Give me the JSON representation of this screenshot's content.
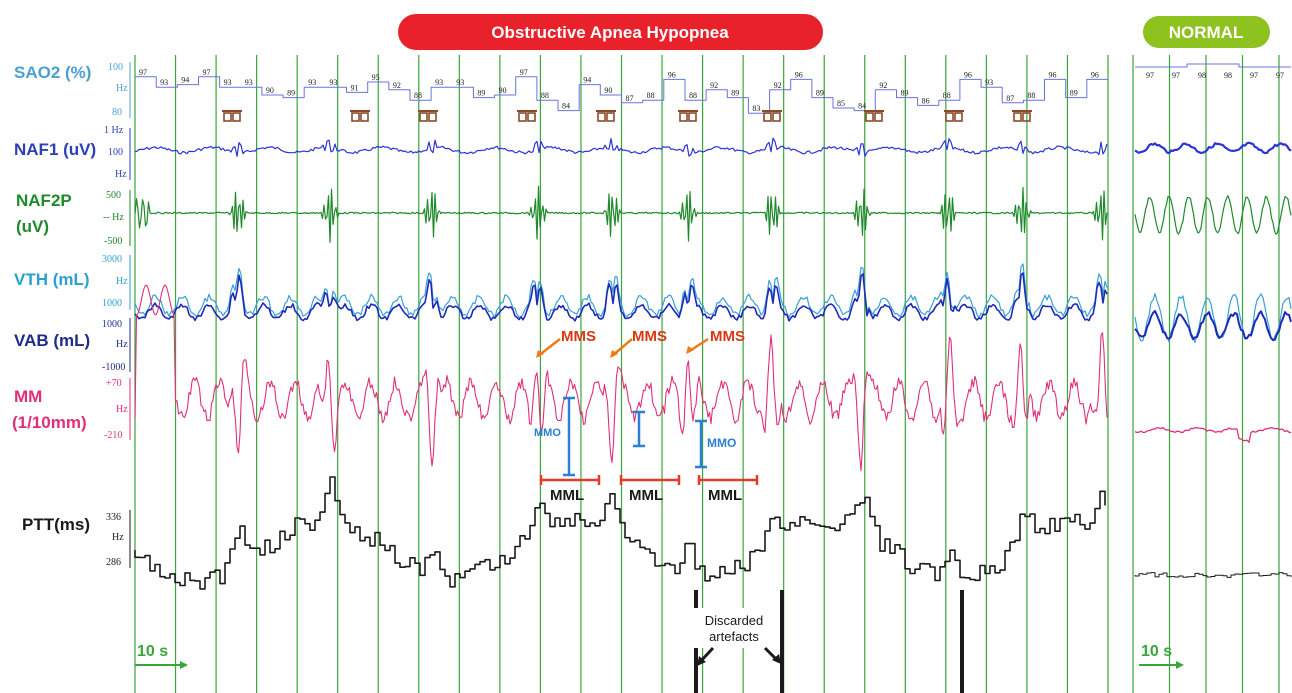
{
  "header": {
    "apnea_title": "Obstructive Apnea Hypopnea",
    "normal_title": "NORMAL"
  },
  "colors": {
    "title_red": "#e8212a",
    "normal_green": "#8dc21f",
    "grid_green": "#3aa53a",
    "sao2": "#6a73e0",
    "naf1": "#2b34d8",
    "naf2p": "#1f8a2c",
    "vth": "#38a0d8",
    "vab": "#1f2bb8",
    "mm": "#e0307a",
    "ptt": "#1a1a1a",
    "mms": "#d93a14",
    "mmo": "#2a7fd6",
    "mml": "#e33a2a"
  },
  "channels": [
    {
      "name": "SAO2 (%)",
      "color": "#4aa0d6",
      "scale_top": "100",
      "scale_mid": "Hz",
      "scale_bot": "80"
    },
    {
      "name": "NAF1 (uV)",
      "color": "#2b3fb8",
      "scale_top": "1 Hz",
      "scale_mid": "100",
      "scale_bot": "Hz"
    },
    {
      "name": "NAF2P",
      "name2": "(uV)",
      "color": "#1f8a2c",
      "scale_top": "500",
      "scale_mid": "-- Hz",
      "scale_bot": "-500"
    },
    {
      "name": "VTH (mL)",
      "color": "#2aa0d0",
      "scale_top": "3000",
      "scale_mid": "Hz",
      "scale_bot": "1000"
    },
    {
      "name": "VAB (mL)",
      "color": "#1f2b8a",
      "scale_top": "1000",
      "scale_mid": "Hz",
      "scale_bot": "-1000"
    },
    {
      "name": "MM",
      "name2": "(1/10mm)",
      "color": "#e0307a",
      "scale_top": "+70",
      "scale_mid": "Hz",
      "scale_bot": "-210"
    },
    {
      "name": "PTT(ms)",
      "color": "#1a1a1a",
      "scale_top": "336",
      "scale_mid": "Hz",
      "scale_bot": "286"
    }
  ],
  "annotations": {
    "mms_label": "MMS",
    "mmo_label": "MMO",
    "mml_label": "MML",
    "discarded_line1": "Discarded",
    "discarded_line2": "artefacts",
    "time_scale": "10 s",
    "marker_glyph": "⊓⊓"
  },
  "chart_data": {
    "type": "line",
    "panels": [
      "Obstructive Apnea Hypopnea",
      "NORMAL"
    ],
    "series": [
      {
        "name": "SAO2 (%)",
        "unit": "%",
        "range": [
          80,
          100
        ]
      },
      {
        "name": "NAF1 (uV)",
        "unit": "uV"
      },
      {
        "name": "NAF2P (uV)",
        "unit": "uV",
        "range": [
          -500,
          500
        ]
      },
      {
        "name": "VTH (mL)",
        "unit": "mL",
        "range": [
          1000,
          3000
        ]
      },
      {
        "name": "VAB (mL)",
        "unit": "mL",
        "range": [
          -1000,
          1000
        ]
      },
      {
        "name": "MM (1/10mm)",
        "unit": "1/10mm",
        "range": [
          -210,
          70
        ]
      },
      {
        "name": "PTT(ms)",
        "unit": "ms",
        "range": [
          286,
          336
        ]
      }
    ],
    "sao2_values_apnea": [
      97,
      93,
      94,
      97,
      93,
      93,
      90,
      89,
      93,
      93,
      91,
      95,
      92,
      88,
      93,
      93,
      89,
      90,
      97,
      88,
      84,
      94,
      90,
      87,
      88,
      96,
      88,
      92,
      89,
      83,
      92,
      96,
      89,
      85,
      84,
      92,
      89,
      86,
      88,
      96,
      93,
      87,
      88,
      96,
      89,
      96
    ],
    "sao2_values_normal": [
      97,
      97,
      98,
      98,
      97,
      97
    ],
    "time_scale": "10 s",
    "grid": true
  }
}
